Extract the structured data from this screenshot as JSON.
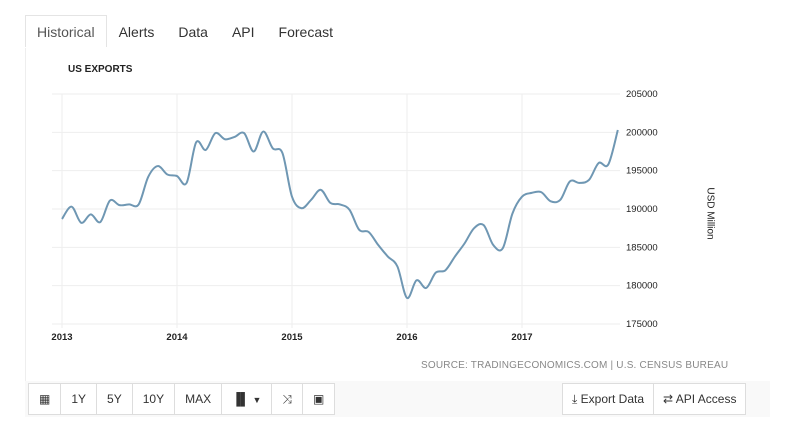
{
  "tabs": [
    {
      "label": "Historical",
      "active": true
    },
    {
      "label": "Alerts"
    },
    {
      "label": "Data"
    },
    {
      "label": "API"
    },
    {
      "label": "Forecast"
    }
  ],
  "toolbar": {
    "calendar_icon": "calendar-icon",
    "range_buttons": [
      "1Y",
      "5Y",
      "10Y",
      "MAX"
    ],
    "chart_type_icon": "bar-chart-dropdown-icon",
    "compare_icon": "shuffle-icon",
    "image_icon": "image-icon",
    "export_label": "Export Data",
    "api_label": "API Access"
  },
  "source": "SOURCE: TRADINGECONOMICS.COM | U.S. CENSUS BUREAU",
  "colors": {
    "line": "#6f97b3",
    "grid": "#eeeeee"
  },
  "chart_data": {
    "type": "line",
    "title": "US EXPORTS",
    "xlabel": "",
    "ylabel": "USD Million",
    "x_start": "2013-01",
    "frequency": "monthly",
    "xticks": [
      "2013",
      "2014",
      "2015",
      "2016",
      "2017"
    ],
    "yticks": [
      175000,
      180000,
      185000,
      190000,
      195000,
      200000,
      205000
    ],
    "ylim": [
      175000,
      205000
    ],
    "grid": true,
    "series": [
      {
        "name": "US Exports",
        "values": [
          188700,
          190300,
          188200,
          189300,
          188300,
          191100,
          190500,
          190600,
          190600,
          194200,
          195600,
          194500,
          194300,
          193400,
          198700,
          197700,
          199900,
          199100,
          199400,
          199900,
          197500,
          200100,
          197900,
          197300,
          191600,
          190100,
          191200,
          192500,
          190800,
          190600,
          189900,
          187300,
          187000,
          185300,
          183800,
          182500,
          178400,
          180700,
          179700,
          181700,
          182000,
          183800,
          185500,
          187500,
          187900,
          185300,
          184900,
          189400,
          191600,
          192100,
          192200,
          191000,
          191200,
          193600,
          193400,
          193800,
          196000,
          195800,
          200300
        ]
      }
    ]
  }
}
